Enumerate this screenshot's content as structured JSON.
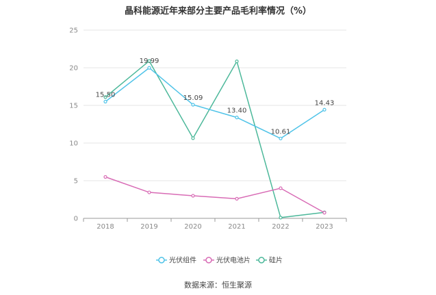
{
  "chart_data": {
    "type": "line",
    "title": "晶科能源近年来部分主要产品毛利率情况（%）",
    "categories": [
      "2018",
      "2019",
      "2020",
      "2021",
      "2022",
      "2023"
    ],
    "ylim": [
      0,
      25
    ],
    "yticks": [
      "0",
      "5",
      "10",
      "15",
      "20",
      "25"
    ],
    "grid": true,
    "legend": "bottom",
    "series": [
      {
        "name": "光伏组件",
        "color": "#4fc3e8",
        "values": [
          15.5,
          19.99,
          15.09,
          13.4,
          10.61,
          14.43
        ],
        "labels": [
          "15.50",
          "19.99",
          "15.09",
          "13.40",
          "10.61",
          "14.43"
        ]
      },
      {
        "name": "光伏电池片",
        "color": "#d86bb5",
        "values": [
          5.5,
          3.45,
          3.0,
          2.6,
          4.0,
          0.75
        ]
      },
      {
        "name": "硅片",
        "color": "#4cb89a",
        "values": [
          16.1,
          20.9,
          10.65,
          20.85,
          0.1,
          0.8
        ]
      }
    ]
  },
  "source": "数据来源：恒生聚源"
}
